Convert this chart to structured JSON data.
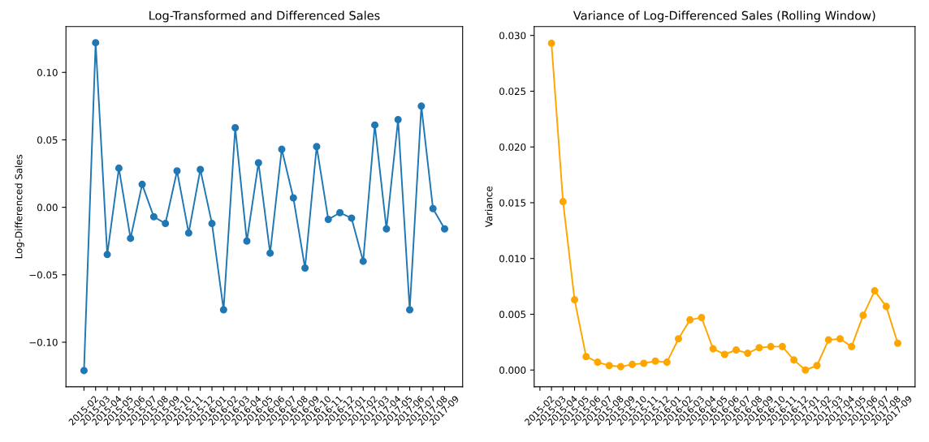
{
  "chart_data": [
    {
      "type": "line",
      "title": "Log-Transformed and Differenced Sales",
      "ylabel": "Log-Differenced Sales",
      "categories": [
        "2015-02",
        "2015-03",
        "2015-04",
        "2015-05",
        "2015-06",
        "2015-07",
        "2015-08",
        "2015-09",
        "2015-10",
        "2015-11",
        "2015-12",
        "2016-01",
        "2016-02",
        "2016-03",
        "2016-04",
        "2016-05",
        "2016-06",
        "2016-07",
        "2016-08",
        "2016-09",
        "2016-10",
        "2016-11",
        "2016-12",
        "2017-01",
        "2017-02",
        "2017-03",
        "2017-04",
        "2017-05",
        "2017-06",
        "2017-07",
        "2017-08",
        "2017-09"
      ],
      "series": [
        {
          "color": "#1f77b4",
          "values": [
            -0.121,
            0.122,
            -0.035,
            0.029,
            -0.023,
            0.017,
            -0.007,
            -0.012,
            0.027,
            -0.019,
            0.028,
            -0.012,
            -0.076,
            0.059,
            -0.025,
            0.033,
            -0.034,
            0.043,
            0.007,
            -0.045,
            0.045,
            -0.009,
            -0.004,
            -0.008,
            -0.04,
            0.061,
            -0.016,
            0.065,
            -0.076,
            0.075,
            -0.001,
            -0.016
          ]
        }
      ],
      "ylim": [
        -0.133,
        0.134
      ],
      "yticks": [
        {
          "value": -0.1,
          "label": "−0.10"
        },
        {
          "value": -0.05,
          "label": "−0.05"
        },
        {
          "value": 0,
          "label": "0.00"
        },
        {
          "value": 0.05,
          "label": "0.05"
        },
        {
          "value": 0.1,
          "label": "0.10"
        }
      ],
      "marker": "circle",
      "line_style": "solid"
    },
    {
      "type": "line",
      "title": "Variance of Log-Differenced Sales (Rolling Window)",
      "ylabel": "Variance",
      "categories": [
        "2015-02",
        "2015-03",
        "2015-04",
        "2015-05",
        "2015-06",
        "2015-07",
        "2015-08",
        "2015-09",
        "2015-10",
        "2015-11",
        "2015-12",
        "2016-01",
        "2016-02",
        "2016-03",
        "2016-04",
        "2016-05",
        "2016-06",
        "2016-07",
        "2016-08",
        "2016-09",
        "2016-10",
        "2016-11",
        "2016-12",
        "2017-01",
        "2017-02",
        "2017-03",
        "2017-04",
        "2017-05",
        "2017-06",
        "2017-07",
        "2017-08",
        "2017-09"
      ],
      "series": [
        {
          "color": "#ffa500",
          "values": [
            null,
            0.0293,
            0.0151,
            0.0063,
            0.0012,
            0.0007,
            0.0004,
            0.0003,
            0.0005,
            0.0006,
            0.0008,
            0.0007,
            0.0028,
            0.0045,
            0.0047,
            0.0019,
            0.0014,
            0.0018,
            0.0015,
            0.002,
            0.0021,
            0.0021,
            0.0009,
            0.0,
            0.0004,
            0.0027,
            0.0028,
            0.0021,
            0.0049,
            0.0071,
            0.0057,
            0.0024
          ]
        }
      ],
      "ylim": [
        -0.0015,
        0.0308
      ],
      "yticks": [
        {
          "value": 0,
          "label": "0.000"
        },
        {
          "value": 0.005,
          "label": "0.005"
        },
        {
          "value": 0.01,
          "label": "0.010"
        },
        {
          "value": 0.015,
          "label": "0.015"
        },
        {
          "value": 0.02,
          "label": "0.020"
        },
        {
          "value": 0.025,
          "label": "0.025"
        },
        {
          "value": 0.03,
          "label": "0.030"
        }
      ],
      "marker": "circle",
      "line_style": "solid"
    }
  ]
}
